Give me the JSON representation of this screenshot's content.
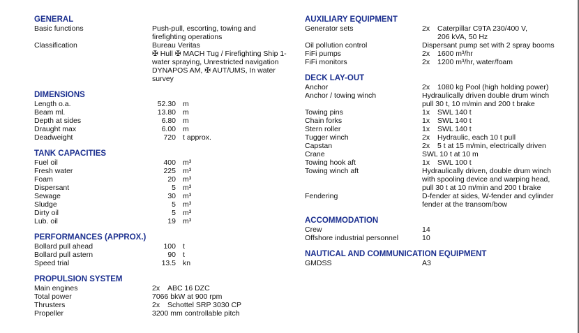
{
  "colors": {
    "heading": "#1b2f8f",
    "text": "#111111"
  },
  "left": [
    {
      "title": "GENERAL",
      "rows": [
        {
          "label": "Basic functions",
          "lines": [
            "Push-pull, escorting, towing and",
            "firefighting operations"
          ]
        },
        {
          "label": "Classification",
          "lines": [
            "Bureau Veritas",
            "✠ Hull ✠ MACH Tug / Firefighting Ship 1-",
            "water spraying, Unrestricted navigation",
            "DYNAPOS AM, ✠ AUT/UMS, In water",
            "survey"
          ]
        }
      ]
    },
    {
      "title": "DIMENSIONS",
      "rows": [
        {
          "label": "Length o.a.",
          "num": "52.30",
          "unit": "m"
        },
        {
          "label": "Beam ml.",
          "num": "13.80",
          "unit": "m"
        },
        {
          "label": "Depth at sides",
          "num": "6.80",
          "unit": "m"
        },
        {
          "label": "Draught max",
          "num": "6.00",
          "unit": "m"
        },
        {
          "label": "Deadweight",
          "num": "720",
          "unit": "t approx."
        }
      ]
    },
    {
      "title": "TANK CAPACITIES",
      "rows": [
        {
          "label": "Fuel oil",
          "num": "400",
          "unit": "m³"
        },
        {
          "label": "Fresh water",
          "num": "225",
          "unit": "m³"
        },
        {
          "label": "Foam",
          "num": "20",
          "unit": "m³"
        },
        {
          "label": "Dispersant",
          "num": "5",
          "unit": "m³"
        },
        {
          "label": "Sewage",
          "num": "30",
          "unit": "m³"
        },
        {
          "label": "Sludge",
          "num": "5",
          "unit": "m³"
        },
        {
          "label": "Dirty oil",
          "num": "5",
          "unit": "m³"
        },
        {
          "label": "Lub. oil",
          "num": "19",
          "unit": "m³"
        }
      ]
    },
    {
      "title": "PERFORMANCES (APPROX.)",
      "rows": [
        {
          "label": "Bollard pull ahead",
          "num": "100",
          "unit": "t"
        },
        {
          "label": "Bollard pull astern",
          "num": "90",
          "unit": "t"
        },
        {
          "label": "Speed trial",
          "num": "13.5",
          "unit": "kn"
        }
      ]
    },
    {
      "title": "PROPULSION SYSTEM",
      "rows": [
        {
          "label": "Main engines",
          "qty": "2x",
          "lines": [
            "ABC 16 DZC"
          ]
        },
        {
          "label": "Total power",
          "lines": [
            "7066 bkW at 900 rpm"
          ]
        },
        {
          "label": "Thrusters",
          "qty": "2x",
          "lines": [
            "Schottel SRP 3030 CP"
          ]
        },
        {
          "label": "Propeller",
          "lines": [
            "3200 mm controllable pitch"
          ]
        }
      ]
    }
  ],
  "right": [
    {
      "title": "AUXILIARY EQUIPMENT",
      "rows": [
        {
          "label": "Generator sets",
          "qty": "2x",
          "lines": [
            "Caterpillar C9TA 230/400 V,",
            "206 kVA, 50 Hz"
          ]
        },
        {
          "label": "Oil pollution control",
          "lines": [
            "Dispersant pump set with 2 spray booms"
          ]
        },
        {
          "label": "FiFi pumps",
          "qty": "2x",
          "lines": [
            "1600 m³/hr"
          ]
        },
        {
          "label": "FiFi monitors",
          "qty": "2x",
          "lines": [
            "1200  m³/hr, water/foam"
          ]
        }
      ]
    },
    {
      "title": "DECK LAY-OUT",
      "rows": [
        {
          "label": "Anchor",
          "qty": "2x",
          "lines": [
            "1080 kg Pool (high holding power)"
          ]
        },
        {
          "label": "Anchor / towing winch",
          "lines": [
            "Hydraulically driven double drum winch",
            "pull 30 t, 10 m/min and 200 t brake"
          ]
        },
        {
          "label": "Towing pins",
          "qty": "1x",
          "lines": [
            "SWL 140 t"
          ]
        },
        {
          "label": "Chain forks",
          "qty": "1x",
          "lines": [
            "SWL 140 t"
          ]
        },
        {
          "label": "Stern roller",
          "qty": "1x",
          "lines": [
            "SWL 140 t"
          ]
        },
        {
          "label": "Tugger winch",
          "qty": "2x",
          "lines": [
            "Hydraulic, each 10 t pull"
          ]
        },
        {
          "label": "Capstan",
          "qty": "2x",
          "lines": [
            "5 t at 15 m/min, electrically driven"
          ]
        },
        {
          "label": "Crane",
          "lines": [
            "SWL 10 t at 10 m"
          ]
        },
        {
          "label": "Towing hook aft",
          "qty": "1x",
          "lines": [
            "SWL 100 t"
          ]
        },
        {
          "label": "Towing winch aft",
          "lines": [
            "Hydraulically driven, double drum winch",
            "with spooling device and warping head,",
            "pull 30 t at 10 m/min and 200 t brake"
          ]
        },
        {
          "label": "Fendering",
          "lines": [
            "D-fender at sides, W-fender and cylinder",
            "fender at the transom/bow"
          ]
        }
      ]
    },
    {
      "title": "ACCOMMODATION",
      "rows": [
        {
          "label": "Crew",
          "lines": [
            "14"
          ]
        },
        {
          "label": "Offshore industrial personnel",
          "lines": [
            "10"
          ]
        }
      ]
    },
    {
      "title": "NAUTICAL AND COMMUNICATION EQUIPMENT",
      "rows": [
        {
          "label": "GMDSS",
          "lines": [
            "A3"
          ]
        }
      ]
    }
  ]
}
